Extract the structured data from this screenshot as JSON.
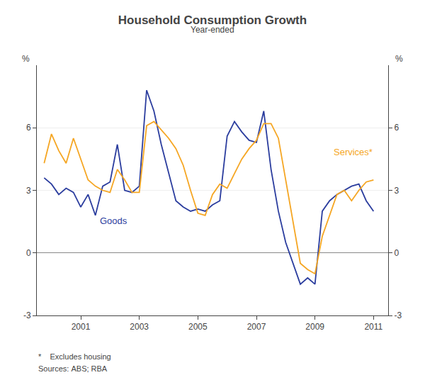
{
  "chart_data": {
    "type": "line",
    "title": "Household Consumption Growth",
    "subtitle": "Year-ended",
    "ylabel": "%",
    "y2label": "%",
    "footnotes": [
      "*    Excludes housing",
      "Sources: ABS; RBA"
    ],
    "x": [
      1999.75,
      2000.0,
      2000.25,
      2000.5,
      2000.75,
      2001.0,
      2001.25,
      2001.5,
      2001.75,
      2002.0,
      2002.25,
      2002.5,
      2002.75,
      2003.0,
      2003.25,
      2003.5,
      2003.75,
      2004.0,
      2004.25,
      2004.5,
      2004.75,
      2005.0,
      2005.25,
      2005.5,
      2005.75,
      2006.0,
      2006.25,
      2006.5,
      2006.75,
      2007.0,
      2007.25,
      2007.5,
      2007.75,
      2008.0,
      2008.25,
      2008.5,
      2008.75,
      2009.0,
      2009.25,
      2009.5,
      2009.75,
      2010.0,
      2010.25,
      2010.5,
      2010.75,
      2011.0
    ],
    "series": [
      {
        "name": "Goods",
        "color": "#2b3d9e",
        "values": [
          3.6,
          3.3,
          2.8,
          3.1,
          2.9,
          2.2,
          2.8,
          1.8,
          3.2,
          3.4,
          5.2,
          3.0,
          2.9,
          3.2,
          7.8,
          6.8,
          5.2,
          3.8,
          2.5,
          2.2,
          2.0,
          2.1,
          2.0,
          2.3,
          2.5,
          5.6,
          6.3,
          5.8,
          5.4,
          5.3,
          6.8,
          4.0,
          2.0,
          0.5,
          -0.5,
          -1.5,
          -1.2,
          -1.5,
          2.0,
          2.5,
          2.8,
          3.0,
          3.2,
          3.3,
          2.5,
          2.0
        ]
      },
      {
        "name": "Services*",
        "color": "#f5a623",
        "values": [
          4.3,
          5.7,
          4.9,
          4.3,
          5.5,
          4.5,
          3.5,
          3.2,
          3.0,
          2.9,
          4.0,
          3.5,
          2.9,
          2.9,
          6.1,
          6.3,
          5.9,
          5.5,
          5.0,
          4.2,
          3.0,
          1.9,
          1.8,
          2.8,
          3.3,
          3.1,
          3.8,
          4.5,
          5.0,
          5.4,
          6.2,
          6.2,
          5.5,
          3.5,
          1.5,
          -0.5,
          -0.8,
          -1.0,
          0.8,
          1.8,
          2.8,
          3.0,
          2.5,
          3.0,
          3.4,
          3.5
        ]
      }
    ],
    "annotations": [
      {
        "text": "Goods",
        "x": 2001.6,
        "y": 1.2,
        "color": "#2b3d9e"
      },
      {
        "text": "Services*",
        "x": 2009.6,
        "y": 4.5,
        "color": "#f5a623"
      }
    ],
    "xlim": [
      1999.5,
      2011.5
    ],
    "xticks": [
      2001,
      2003,
      2005,
      2007,
      2009,
      2011
    ],
    "ylim": [
      -3,
      9
    ],
    "yticks": [
      -3,
      0,
      3,
      6
    ],
    "y2lim": [
      -3,
      9
    ],
    "y2ticks": [
      -3,
      0,
      3,
      6
    ],
    "grid": true
  }
}
